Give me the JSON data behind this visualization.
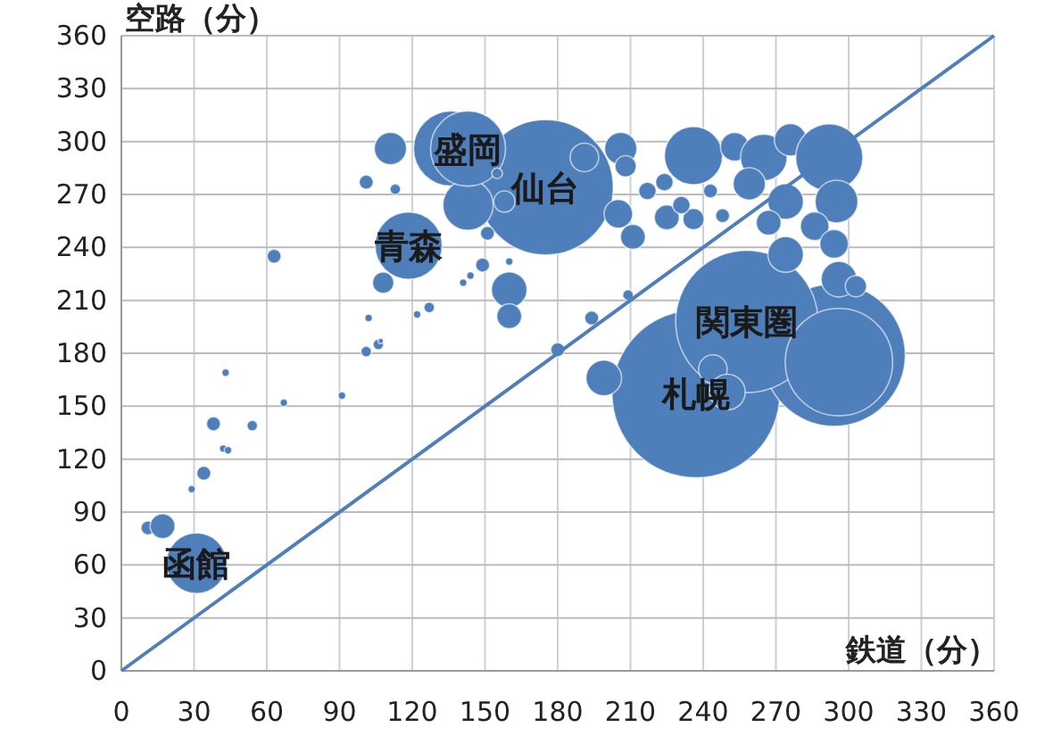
{
  "chart_data": {
    "type": "bubble",
    "xlabel": "鉄道（分）",
    "ylabel": "空路（分）",
    "xlim": [
      0,
      360
    ],
    "ylim": [
      0,
      360
    ],
    "xticks": [
      0,
      30,
      60,
      90,
      120,
      150,
      180,
      210,
      240,
      270,
      300,
      330,
      360
    ],
    "yticks": [
      0,
      30,
      60,
      90,
      120,
      150,
      180,
      210,
      240,
      270,
      300,
      330,
      360
    ],
    "grid": true,
    "series": [
      {
        "color": "#4f7fba",
        "x": [
          237,
          294,
          258,
          175,
          136,
          143,
          118.5,
          31,
          111,
          101,
          113,
          63,
          108,
          143,
          155,
          158,
          151,
          149,
          141,
          144,
          160,
          160,
          160,
          127,
          122,
          102,
          106,
          101,
          107,
          180,
          43,
          67,
          91,
          38,
          54,
          42,
          44,
          34,
          29,
          11,
          17,
          199,
          206,
          191,
          208,
          217,
          224,
          205,
          211,
          225,
          236,
          231,
          248,
          243,
          236,
          253,
          265,
          276,
          292,
          295,
          274,
          267,
          286,
          294,
          274,
          296,
          303,
          259,
          209,
          194,
          296,
          244,
          250
        ],
        "values": [
          157,
          179,
          198,
          274,
          296,
          264,
          241,
          61,
          296,
          277,
          273,
          235,
          220,
          296,
          282,
          266,
          248,
          230,
          220,
          224,
          232,
          216,
          201,
          206,
          202,
          200,
          185,
          181,
          187,
          182,
          169,
          152,
          156,
          140,
          139,
          126,
          125,
          112,
          103,
          81,
          82,
          166,
          296,
          291,
          286,
          272,
          277,
          259,
          246,
          257,
          256,
          264,
          258,
          272,
          292,
          297,
          291,
          301,
          291,
          266,
          266,
          254,
          252,
          242,
          236,
          222,
          218,
          276,
          213,
          200,
          175,
          171,
          158
        ],
        "sizes": [
          1,
          0.72,
          0.72,
          0.65,
          0.2,
          0.09,
          0.16,
          0.13,
          0.037,
          0.007,
          0.004,
          0.007,
          0.016,
          0.2,
          0.004,
          0.016,
          0.007,
          0.007,
          0.002,
          0.002,
          0.002,
          0.045,
          0.022,
          0.004,
          0.002,
          0.002,
          0.004,
          0.004,
          0.001,
          0.007,
          0.002,
          0.002,
          0.002,
          0.007,
          0.004,
          0.002,
          0.002,
          0.007,
          0.002,
          0.007,
          0.022,
          0.045,
          0.037,
          0.029,
          0.016,
          0.011,
          0.011,
          0.029,
          0.022,
          0.022,
          0.016,
          0.011,
          0.007,
          0.007,
          0.12,
          0.029,
          0.077,
          0.037,
          0.16,
          0.065,
          0.045,
          0.022,
          0.029,
          0.029,
          0.045,
          0.045,
          0.016,
          0.037,
          0.004,
          0.007,
          0.41,
          0.029,
          0.045
        ]
      },
      {
        "type": "line",
        "color": "#4f7fba",
        "x": [
          0,
          360
        ],
        "values": [
          0,
          360
        ]
      }
    ],
    "annotations": [
      {
        "text": "函館",
        "x": 31,
        "y": 61
      },
      {
        "text": "青森",
        "x": 118.5,
        "y": 241
      },
      {
        "text": "盛岡",
        "x": 143,
        "y": 296
      },
      {
        "text": "仙台",
        "x": 175,
        "y": 274
      },
      {
        "text": "関東圏",
        "x": 258,
        "y": 198
      },
      {
        "text": "札幌",
        "x": 237,
        "y": 157
      }
    ]
  }
}
